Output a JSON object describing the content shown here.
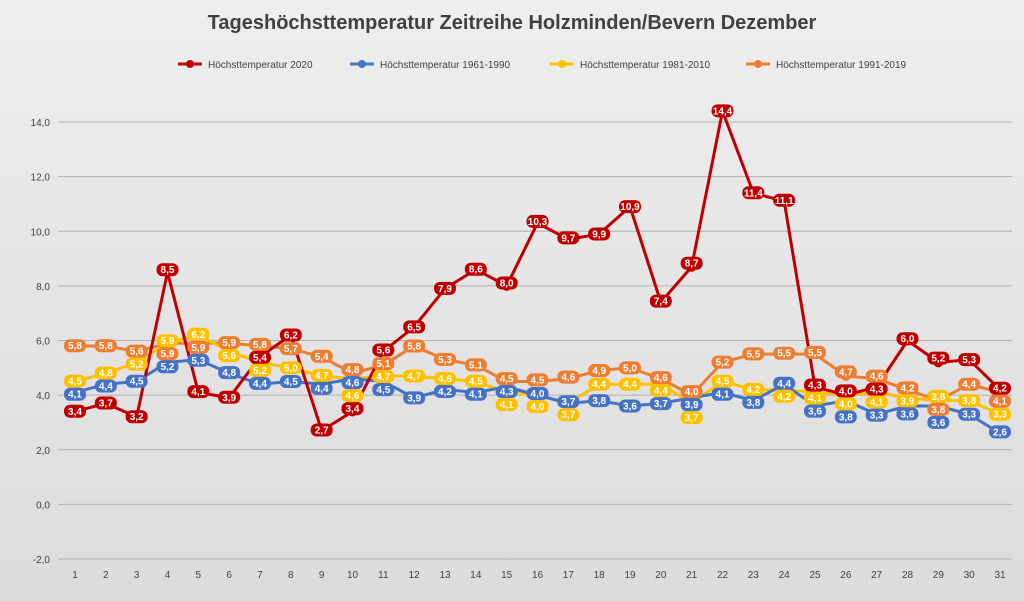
{
  "chart_data": {
    "type": "line",
    "title": "Tageshöchsttemperatur Zeitreihe Holzminden/Bevern Dezember",
    "x": [
      1,
      2,
      3,
      4,
      5,
      6,
      7,
      8,
      9,
      10,
      11,
      12,
      13,
      14,
      15,
      16,
      17,
      18,
      19,
      20,
      21,
      22,
      23,
      24,
      25,
      26,
      27,
      28,
      29,
      30,
      31
    ],
    "ylim": [
      -2,
      14
    ],
    "yticks": [
      "-2,0",
      "0,0",
      "2,0",
      "4,0",
      "6,0",
      "8,0",
      "10,0",
      "12,0",
      "14,0"
    ],
    "grid": true,
    "legend": "top",
    "series": [
      {
        "name": "Höchsttemperatur 2020",
        "color": "#c00000",
        "values": [
          3.4,
          3.7,
          3.2,
          8.5,
          4.1,
          3.9,
          5.4,
          6.2,
          2.7,
          3.4,
          5.6,
          6.5,
          7.9,
          8.6,
          8.0,
          10.3,
          9.7,
          9.9,
          10.9,
          7.4,
          8.7,
          14.4,
          11.4,
          11.1,
          4.3,
          4.0,
          4.3,
          6.0,
          5.2,
          5.3,
          4.2
        ]
      },
      {
        "name": "Höchsttemperatur 1961-1990",
        "color": "#4472c4",
        "values": [
          4.1,
          4.4,
          4.5,
          5.2,
          5.3,
          4.8,
          4.4,
          4.5,
          4.4,
          4.6,
          4.5,
          3.9,
          4.2,
          4.1,
          4.3,
          4.0,
          3.7,
          3.8,
          3.6,
          3.7,
          3.9,
          4.1,
          3.8,
          4.4,
          3.6,
          3.8,
          3.3,
          3.6,
          3.6,
          3.3,
          2.6
        ]
      },
      {
        "name": "Höchsttemperatur 1981-2010",
        "color": "#ffc000",
        "values": [
          4.5,
          4.8,
          5.2,
          5.9,
          6.2,
          5.6,
          5.2,
          5.0,
          4.7,
          4.6,
          4.7,
          4.7,
          4.6,
          4.5,
          4.1,
          4.0,
          3.7,
          4.4,
          4.4,
          4.4,
          3.7,
          4.5,
          4.2,
          4.2,
          4.1,
          4.0,
          4.1,
          3.9,
          3.8,
          3.8,
          3.3
        ]
      },
      {
        "name": "Höchsttemperatur 1991-2019",
        "color": "#ed7d31",
        "values": [
          5.8,
          5.8,
          5.6,
          5.9,
          5.9,
          5.9,
          5.8,
          5.7,
          5.4,
          4.8,
          5.1,
          5.8,
          5.3,
          5.1,
          4.5,
          4.5,
          4.6,
          4.9,
          5.0,
          4.6,
          4.0,
          5.2,
          5.5,
          5.5,
          5.5,
          4.7,
          4.6,
          4.2,
          3.8,
          4.4,
          4.1
        ]
      }
    ]
  }
}
